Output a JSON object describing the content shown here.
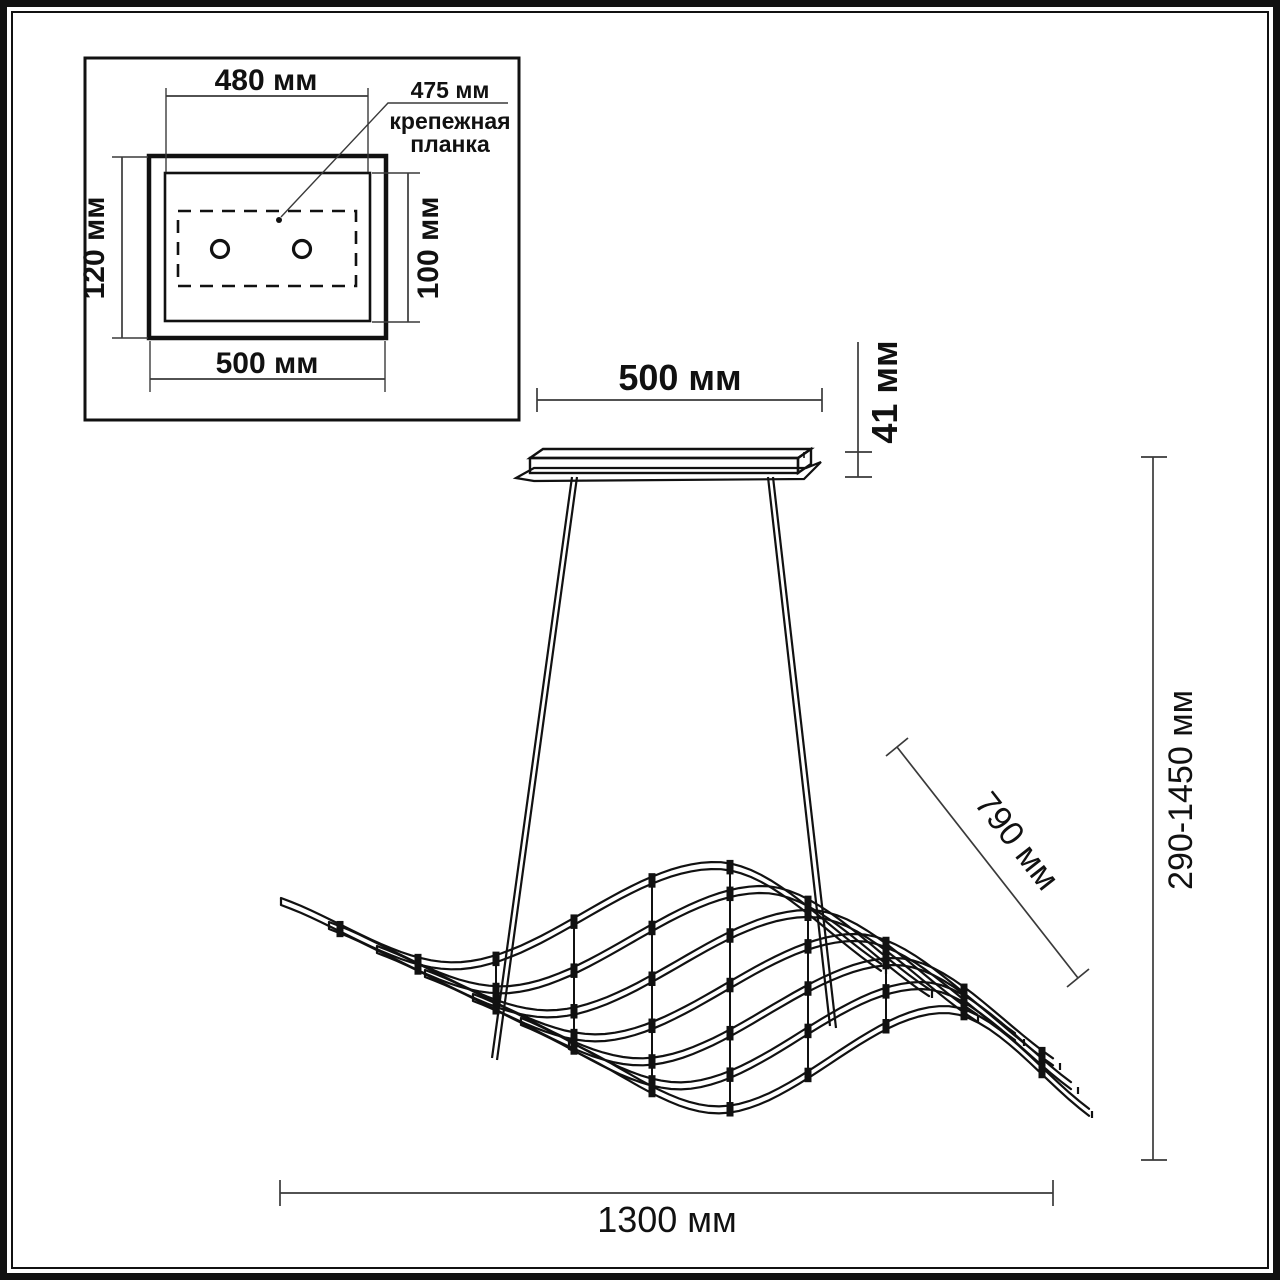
{
  "colors": {
    "ink": "#111111",
    "dim": "#3a3a3a",
    "background": "#ffffff"
  },
  "inset": {
    "dim_top": "480 мм",
    "dim_bottom": "500 мм",
    "dim_left": "120 мм",
    "dim_right": "100 мм",
    "callout": {
      "value": "475 мм",
      "label_line1": "крепежная",
      "label_line2": "планка"
    }
  },
  "main": {
    "dim_canopy_width": "500 мм",
    "dim_canopy_height": "41 мм",
    "dim_wave_length": "790 мм",
    "dim_suspension_height": "290-1450 мм",
    "dim_overall_width": "1300 мм"
  }
}
